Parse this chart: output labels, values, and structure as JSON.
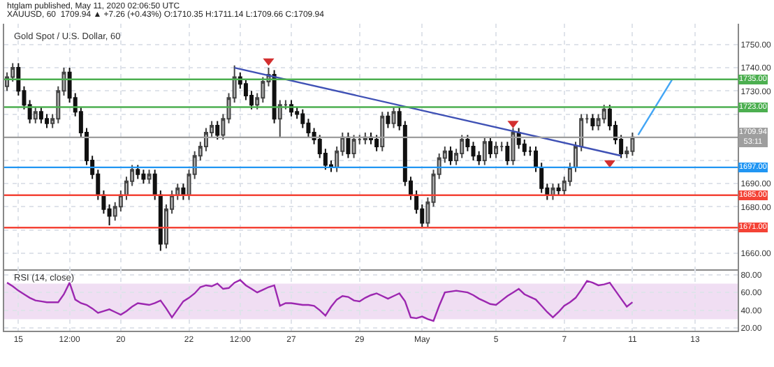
{
  "chart_data": [
    {
      "type": "candlestick",
      "title": "Gold Spot / U.S. Dollar, 60",
      "annotations": [
        "htglam published, May 11, 2020 02:06:50 UTC",
        "XAUUSD, 60  1709.94 ▲ +7.26 (+0.43%) O:1710.35 H:1711.14 L:1709.66 C:1709.94"
      ],
      "categories": [
        null,
        null,
        null,
        null,
        null,
        null,
        null,
        null,
        null,
        null,
        null,
        null,
        null,
        null,
        null,
        null,
        null,
        null,
        null,
        null,
        null,
        null,
        null,
        null,
        null,
        null,
        null,
        null,
        null,
        null,
        null,
        null,
        null,
        null,
        null,
        null,
        null,
        null,
        null,
        null,
        null,
        null,
        null,
        null,
        null,
        null,
        null,
        null,
        null,
        null,
        null,
        null,
        null,
        null,
        null,
        null,
        null,
        null,
        null,
        null,
        null,
        null,
        null,
        null,
        null,
        null,
        null,
        null,
        null,
        null,
        null,
        null,
        null,
        null,
        null,
        null,
        null,
        null,
        null,
        null,
        null,
        null,
        null,
        null,
        null,
        null,
        null,
        null,
        null,
        null,
        null,
        null,
        null,
        null,
        null,
        null,
        null,
        null,
        null,
        null,
        null,
        null,
        null,
        null,
        null,
        null,
        null,
        null,
        null,
        null,
        null,
        null,
        null,
        null,
        null,
        null,
        null,
        null,
        null,
        null,
        null,
        null,
        null,
        null,
        null,
        null,
        null,
        null,
        null
      ],
      "ohlc": [
        [
          1732,
          1738,
          1730,
          1736
        ],
        [
          1736,
          1742,
          1734,
          1740
        ],
        [
          1740,
          1742,
          1728,
          1730
        ],
        [
          1730,
          1732,
          1722,
          1724
        ],
        [
          1724,
          1726,
          1716,
          1718
        ],
        [
          1718,
          1723,
          1716,
          1721
        ],
        [
          1721,
          1723,
          1716,
          1718
        ],
        [
          1718,
          1720,
          1714,
          1716
        ],
        [
          1716,
          1720,
          1714,
          1718
        ],
        [
          1718,
          1732,
          1716,
          1730
        ],
        [
          1730,
          1740,
          1728,
          1738
        ],
        [
          1738,
          1740,
          1725,
          1727
        ],
        [
          1727,
          1729,
          1719,
          1721
        ],
        [
          1721,
          1723,
          1710,
          1712
        ],
        [
          1712,
          1714,
          1698,
          1700
        ],
        [
          1700,
          1702,
          1692,
          1694
        ],
        [
          1694,
          1696,
          1683,
          1685
        ],
        [
          1685,
          1687,
          1677,
          1679
        ],
        [
          1679,
          1681,
          1672,
          1676
        ],
        [
          1676,
          1682,
          1674,
          1680
        ],
        [
          1680,
          1687,
          1678,
          1685
        ],
        [
          1685,
          1693,
          1683,
          1691
        ],
        [
          1691,
          1698,
          1689,
          1696
        ],
        [
          1696,
          1698,
          1692,
          1694
        ],
        [
          1694,
          1696,
          1690,
          1692
        ],
        [
          1692,
          1696,
          1690,
          1694
        ],
        [
          1694,
          1696,
          1683,
          1685
        ],
        [
          1685,
          1687,
          1661,
          1664
        ],
        [
          1664,
          1681,
          1662,
          1679
        ],
        [
          1679,
          1687,
          1677,
          1685
        ],
        [
          1685,
          1690,
          1683,
          1688
        ],
        [
          1688,
          1690,
          1683,
          1685
        ],
        [
          1685,
          1696,
          1683,
          1694
        ],
        [
          1694,
          1704,
          1692,
          1702
        ],
        [
          1702,
          1708,
          1700,
          1706
        ],
        [
          1706,
          1714,
          1704,
          1712
        ],
        [
          1712,
          1717,
          1710,
          1715
        ],
        [
          1715,
          1717,
          1709,
          1711
        ],
        [
          1711,
          1720,
          1709,
          1718
        ],
        [
          1718,
          1729,
          1716,
          1727
        ],
        [
          1727,
          1741,
          1725,
          1736
        ],
        [
          1736,
          1738,
          1731,
          1733
        ],
        [
          1733,
          1735,
          1726,
          1728
        ],
        [
          1728,
          1730,
          1722,
          1724
        ],
        [
          1724,
          1729,
          1722,
          1727
        ],
        [
          1727,
          1736,
          1725,
          1734
        ],
        [
          1734,
          1740,
          1732,
          1737
        ],
        [
          1737,
          1739,
          1716,
          1718
        ],
        [
          1718,
          1726,
          1710,
          1724
        ],
        [
          1724,
          1726,
          1722,
          1724
        ],
        [
          1724,
          1726,
          1719,
          1721
        ],
        [
          1721,
          1723,
          1718,
          1720
        ],
        [
          1720,
          1722,
          1714,
          1716
        ],
        [
          1716,
          1718,
          1710,
          1712
        ],
        [
          1712,
          1714,
          1707,
          1709
        ],
        [
          1709,
          1711,
          1701,
          1703
        ],
        [
          1703,
          1705,
          1696,
          1698
        ],
        [
          1698,
          1700,
          1695,
          1697
        ],
        [
          1697,
          1706,
          1695,
          1704
        ],
        [
          1704,
          1712,
          1702,
          1710
        ],
        [
          1710,
          1712,
          1701,
          1703
        ],
        [
          1703,
          1711,
          1701,
          1709
        ],
        [
          1709,
          1711,
          1707,
          1709
        ],
        [
          1709,
          1712,
          1707,
          1710
        ],
        [
          1710,
          1712,
          1707,
          1709
        ],
        [
          1709,
          1711,
          1704,
          1706
        ],
        [
          1706,
          1721,
          1704,
          1719
        ],
        [
          1719,
          1721,
          1714,
          1716
        ],
        [
          1716,
          1723,
          1714,
          1721
        ],
        [
          1721,
          1723,
          1713,
          1715
        ],
        [
          1715,
          1717,
          1689,
          1691
        ],
        [
          1691,
          1693,
          1683,
          1685
        ],
        [
          1685,
          1687,
          1677,
          1679
        ],
        [
          1679,
          1681,
          1671,
          1673
        ],
        [
          1673,
          1684,
          1671,
          1682
        ],
        [
          1682,
          1696,
          1680,
          1694
        ],
        [
          1694,
          1703,
          1692,
          1701
        ],
        [
          1701,
          1706,
          1699,
          1704
        ],
        [
          1704,
          1706,
          1698,
          1700
        ],
        [
          1700,
          1705,
          1698,
          1703
        ],
        [
          1703,
          1711,
          1701,
          1709
        ],
        [
          1709,
          1711,
          1704,
          1706
        ],
        [
          1706,
          1708,
          1700,
          1702
        ],
        [
          1702,
          1704,
          1698,
          1700
        ],
        [
          1700,
          1710,
          1698,
          1708
        ],
        [
          1708,
          1710,
          1701,
          1703
        ],
        [
          1703,
          1708,
          1701,
          1706
        ],
        [
          1706,
          1708,
          1704,
          1706
        ],
        [
          1706,
          1708,
          1698,
          1700
        ],
        [
          1700,
          1714,
          1698,
          1712
        ],
        [
          1712,
          1714,
          1705,
          1707
        ],
        [
          1707,
          1709,
          1702,
          1704
        ],
        [
          1704,
          1706,
          1702,
          1704
        ],
        [
          1704,
          1706,
          1695,
          1697
        ],
        [
          1697,
          1699,
          1686,
          1688
        ],
        [
          1688,
          1690,
          1683,
          1685
        ],
        [
          1685,
          1690,
          1683,
          1688
        ],
        [
          1688,
          1690,
          1685,
          1687
        ],
        [
          1687,
          1693,
          1685,
          1691
        ],
        [
          1691,
          1699,
          1689,
          1697
        ],
        [
          1697,
          1708,
          1695,
          1706
        ],
        [
          1706,
          1720,
          1704,
          1718
        ],
        [
          1718,
          1720,
          1716,
          1718
        ],
        [
          1718,
          1720,
          1713,
          1715
        ],
        [
          1715,
          1720,
          1713,
          1718
        ],
        [
          1718,
          1724,
          1716,
          1722
        ],
        [
          1722,
          1724,
          1713,
          1715
        ],
        [
          1715,
          1717,
          1707,
          1709
        ],
        [
          1709,
          1711,
          1701,
          1703
        ],
        [
          1703,
          1706,
          1701,
          1704
        ],
        [
          1704,
          1712,
          1702,
          1710
        ],
        null,
        null,
        null,
        null,
        null,
        null,
        null,
        null,
        null,
        null,
        null,
        null,
        null,
        null,
        null,
        null,
        null,
        null
      ],
      "series": [
        {
          "type": "line",
          "color": "#3f51b5",
          "values": [
            null,
            null,
            null,
            null,
            null,
            null,
            null,
            null,
            null,
            null,
            null,
            null,
            null,
            null,
            null,
            null,
            null,
            null,
            null,
            null,
            null,
            null,
            null,
            null,
            null,
            null,
            null,
            null,
            null,
            null,
            null,
            null,
            null,
            null,
            null,
            null,
            null,
            null,
            null,
            null,
            1740,
            null,
            null,
            null,
            null,
            null,
            null,
            null,
            null,
            null,
            null,
            null,
            null,
            null,
            null,
            null,
            null,
            null,
            null,
            null,
            null,
            null,
            null,
            null,
            null,
            null,
            null,
            null,
            null,
            null,
            null,
            null,
            null,
            null,
            null,
            null,
            null,
            null,
            null,
            null,
            null,
            null,
            null,
            null,
            null,
            null,
            null,
            null,
            null,
            null,
            null,
            null,
            null,
            null,
            null,
            null,
            null,
            null,
            null,
            null,
            null,
            null,
            null,
            null,
            null,
            null,
            null,
            null,
            1702,
            null,
            null,
            null,
            null,
            null,
            null,
            null,
            null,
            null,
            null,
            null,
            null,
            null,
            null,
            null,
            null,
            null,
            null,
            null,
            null
          ]
        },
        {
          "type": "line",
          "color": "#42a5f5",
          "values": [
            null,
            null,
            null,
            null,
            null,
            null,
            null,
            null,
            null,
            null,
            null,
            null,
            null,
            null,
            null,
            null,
            null,
            null,
            null,
            null,
            null,
            null,
            null,
            null,
            null,
            null,
            null,
            null,
            null,
            null,
            null,
            null,
            null,
            null,
            null,
            null,
            null,
            null,
            null,
            null,
            null,
            null,
            null,
            null,
            null,
            null,
            null,
            null,
            null,
            null,
            null,
            null,
            null,
            null,
            null,
            null,
            null,
            null,
            null,
            null,
            null,
            null,
            null,
            null,
            null,
            null,
            null,
            null,
            null,
            null,
            null,
            null,
            null,
            null,
            null,
            null,
            null,
            null,
            null,
            null,
            null,
            null,
            null,
            null,
            null,
            null,
            null,
            null,
            null,
            null,
            null,
            null,
            null,
            null,
            null,
            null,
            null,
            null,
            null,
            null,
            null,
            null,
            null,
            null,
            null,
            null,
            null,
            null,
            null,
            null,
            null,
            1711,
            null,
            null,
            null,
            null,
            null,
            1735,
            null,
            null,
            null,
            null,
            null,
            null,
            null,
            null,
            null,
            null,
            null
          ]
        },
        {
          "type": "scatter",
          "color": "#d32f2f",
          "marker": "triangle",
          "values": [
            null,
            null,
            null,
            null,
            null,
            null,
            null,
            null,
            null,
            null,
            null,
            null,
            null,
            null,
            null,
            null,
            null,
            null,
            null,
            null,
            null,
            null,
            null,
            null,
            null,
            null,
            null,
            null,
            null,
            null,
            null,
            null,
            null,
            null,
            null,
            null,
            null,
            null,
            null,
            null,
            null,
            null,
            null,
            null,
            null,
            null,
            1743,
            null,
            null,
            null,
            null,
            null,
            null,
            null,
            null,
            null,
            null,
            null,
            null,
            null,
            null,
            null,
            null,
            null,
            null,
            null,
            null,
            null,
            null,
            null,
            null,
            null,
            null,
            null,
            null,
            null,
            null,
            null,
            null,
            null,
            null,
            null,
            null,
            null,
            null,
            null,
            null,
            null,
            null,
            1716,
            null,
            null,
            null,
            null,
            null,
            null,
            null,
            null,
            null,
            null,
            null,
            null,
            null,
            null,
            null,
            null,
            1699,
            null,
            null,
            null,
            null,
            null,
            null,
            null,
            null,
            null,
            null,
            null,
            null,
            null,
            null,
            null,
            null,
            null,
            null,
            null,
            null,
            null,
            null
          ]
        }
      ],
      "ref_lines": [
        {
          "axis": "y",
          "value": 1735,
          "label": "1735.00",
          "color": "#4caf50"
        },
        {
          "axis": "y",
          "value": 1723,
          "label": "1723.00",
          "color": "#4caf50"
        },
        {
          "axis": "y",
          "value": 1709.94,
          "label": "1709.94\n53:11",
          "color": "#9e9e9e"
        },
        {
          "axis": "y",
          "value": 1697,
          "label": "1697.00",
          "color": "#2196f3"
        },
        {
          "axis": "y",
          "value": 1685,
          "label": "1685.00",
          "color": "#f44336"
        },
        {
          "axis": "y",
          "value": 1671,
          "label": "1671.00",
          "color": "#f44336"
        }
      ],
      "ylim": [
        1653,
        1759
      ],
      "yticks": [
        {
          "value": 1660,
          "label": "1660.00"
        },
        {
          "value": 1670,
          "label": null
        },
        {
          "value": 1680,
          "label": "1680.00"
        },
        {
          "value": 1690,
          "label": "1690.00"
        },
        {
          "value": 1700,
          "label": null
        },
        {
          "value": 1710,
          "label": null
        },
        {
          "value": 1720,
          "label": null
        },
        {
          "value": 1730,
          "label": "1730.00"
        },
        {
          "value": 1740,
          "label": "1740.00"
        },
        {
          "value": 1750,
          "label": "1750.00"
        }
      ],
      "tick_labels": "y",
      "grid": true
    },
    {
      "type": "line",
      "title": "RSI (14, close)",
      "categories": [
        null,
        null,
        "15",
        null,
        null,
        null,
        null,
        null,
        null,
        null,
        null,
        "12:00",
        null,
        null,
        null,
        null,
        null,
        null,
        null,
        null,
        "20",
        null,
        null,
        null,
        null,
        null,
        null,
        null,
        null,
        null,
        null,
        null,
        "22",
        null,
        null,
        null,
        null,
        null,
        null,
        null,
        null,
        "12:00",
        null,
        null,
        null,
        null,
        null,
        null,
        null,
        null,
        "27",
        null,
        null,
        null,
        null,
        null,
        null,
        null,
        null,
        null,
        null,
        null,
        "29",
        null,
        null,
        null,
        null,
        null,
        null,
        null,
        null,
        null,
        null,
        "May",
        null,
        null,
        null,
        null,
        null,
        null,
        null,
        null,
        null,
        null,
        null,
        null,
        "5",
        null,
        null,
        null,
        null,
        null,
        null,
        null,
        null,
        null,
        null,
        null,
        "7",
        null,
        null,
        null,
        null,
        null,
        null,
        null,
        null,
        null,
        null,
        null,
        "11",
        null,
        null,
        null,
        null,
        null,
        null,
        null,
        null,
        null,
        null,
        "13",
        null,
        null,
        null,
        null,
        null,
        null,
        null
      ],
      "series": [
        {
          "color": "#9c27b0",
          "values": [
            71,
            67,
            62,
            58,
            54,
            51,
            50,
            49,
            49,
            49,
            58,
            71,
            52,
            48,
            46,
            42,
            37,
            39,
            41,
            38,
            35,
            39,
            44,
            48,
            47,
            46,
            48,
            51,
            42,
            32,
            41,
            50,
            54,
            59,
            66,
            68,
            67,
            70,
            64,
            65,
            71,
            74,
            68,
            64,
            60,
            63,
            66,
            68,
            45,
            48,
            48,
            47,
            46,
            46,
            45,
            40,
            34,
            44,
            52,
            56,
            55,
            51,
            50,
            54,
            57,
            59,
            56,
            53,
            56,
            59,
            50,
            32,
            31,
            33,
            30,
            28,
            45,
            60,
            61,
            62,
            61,
            60,
            57,
            53,
            50,
            47,
            46,
            51,
            56,
            60,
            64,
            58,
            55,
            52,
            45,
            38,
            32,
            38,
            45,
            49,
            54,
            63,
            73,
            71,
            68,
            69,
            71,
            62,
            53,
            44,
            49,
            null,
            null,
            null,
            null,
            null,
            null,
            null,
            null,
            null,
            null,
            null,
            null,
            null,
            null,
            null,
            null,
            null,
            null
          ]
        }
      ],
      "bands": [
        {
          "axis": "y",
          "from": 30,
          "to": 70,
          "color": "#e1bee7"
        }
      ],
      "ylim": [
        17,
        86
      ],
      "yticks": [
        {
          "value": 20,
          "label": "20.00"
        },
        {
          "value": 40,
          "label": "40.00"
        },
        {
          "value": 60,
          "label": "60.00"
        },
        {
          "value": 80,
          "label": "80.00"
        }
      ],
      "grid": true
    }
  ]
}
